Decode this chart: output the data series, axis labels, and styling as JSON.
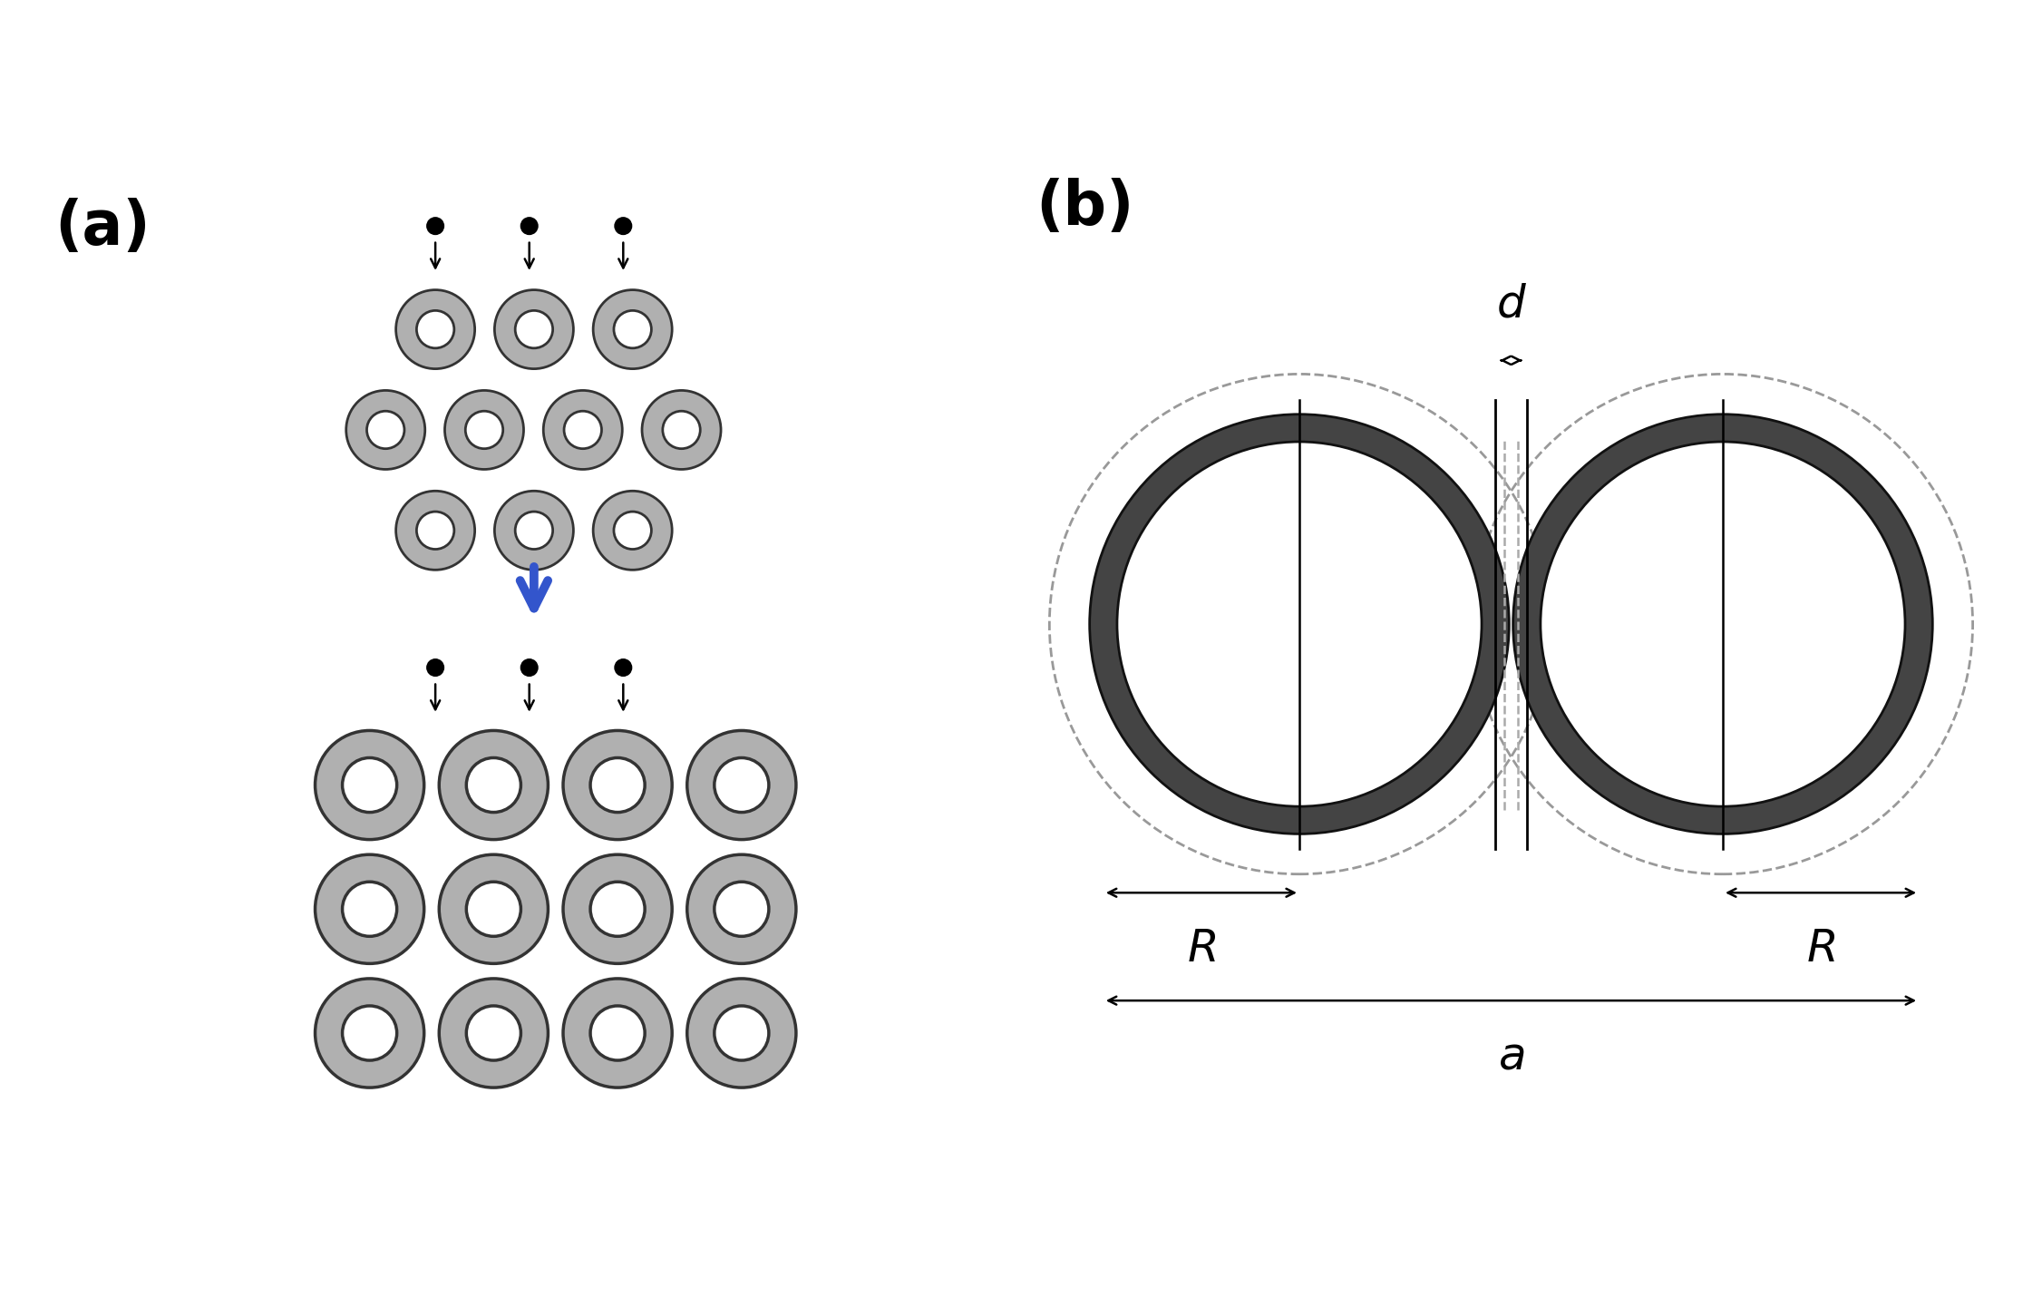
{
  "fig_width": 22.52,
  "fig_height": 14.41,
  "bg_color": "#ffffff",
  "panel_a_label": "(a)",
  "panel_b_label": "(b)",
  "ring_fill": "#b0b0b0",
  "ring_edge": "#333333",
  "ring_inner_fill": "#ffffff",
  "blue_arrow_color": "#3355cc",
  "label_fontsize": 48,
  "annot_fontsize": 36
}
